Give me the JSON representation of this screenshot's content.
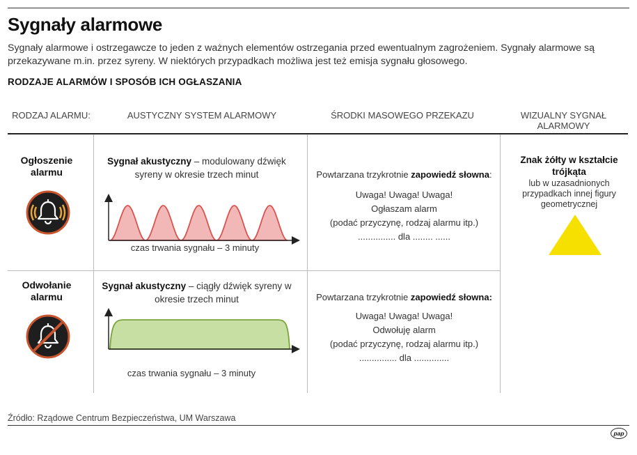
{
  "title": "Sygnały alarmowe",
  "intro": "Sygnały alarmowe i ostrzegawcze to jeden z ważnych elementów ostrzegania przed ewentualnym zagrożeniem. Sygnały alarmowe są przekazywane m.in. przez syreny. W niektórych przypadkach możliwa jest też emisja sygnału głosowego.",
  "subheading": "RODZAJE ALARMÓW I SPOSÓB ICH OGŁASZANIA",
  "columns": {
    "type": "RODZAJ ALARMU:",
    "acoustic": "AUSTYCZNY SYSTEM ALARMOWY",
    "media": "ŚRODKI MASOWEGO PRZEKAZU",
    "visual": "WIZUALNY SYGNAŁ ALARMOWY"
  },
  "rows": [
    {
      "label": "Ogłoszenie alarmu",
      "icon": "bell-icon",
      "signal_bold": "Sygnał akustyczny",
      "signal_text": " –  modulowany dźwięk syreny w okresie trzech minut",
      "axis_label": "czas trwania sygnału – 3 minuty",
      "waveform": "modulated",
      "media_intro": "Powtarzana trzykrotnie ",
      "media_bold": "zapowiedź słowna",
      "media_suffix": ":",
      "media_lines": [
        "Uwaga! Uwaga! Uwaga!",
        "Ogłaszam alarm",
        "(podać przyczynę, rodzaj alarmu itp.)",
        "............... dla ........ ......"
      ],
      "visual_title": "Znak żółty w kształcie trójkąta",
      "visual_desc": "lub w uzasadnionych przypadkach innej figury geometrycznej"
    },
    {
      "label": "Odwołanie alarmu",
      "icon": "bell-off-icon",
      "signal_bold": "Sygnał akustyczny",
      "signal_text": " –  ciągły dźwięk syreny w okresie trzech minut",
      "axis_label": "czas trwania sygnału  – 3 minuty",
      "waveform": "continuous",
      "media_intro": "Powtarzana trzykrotnie ",
      "media_bold": "zapowiedź słowna:",
      "media_suffix": "",
      "media_lines": [
        "Uwaga! Uwaga! Uwaga!",
        "Odwołuję alarm",
        "(podać przyczynę, rodzaj alarmu itp.)",
        "............... dla .............."
      ]
    }
  ],
  "colors": {
    "modulated_fill": "#f2b8b8",
    "modulated_stroke": "#d9534f",
    "continuous_fill": "#c8dfa4",
    "continuous_stroke": "#7aa33c",
    "icon_ring": "#c9552e",
    "triangle": "#f5e000"
  },
  "source": "Źródło: Rządowe Centrum Bezpieczeństwa, UM Warszawa",
  "logo": "pap"
}
